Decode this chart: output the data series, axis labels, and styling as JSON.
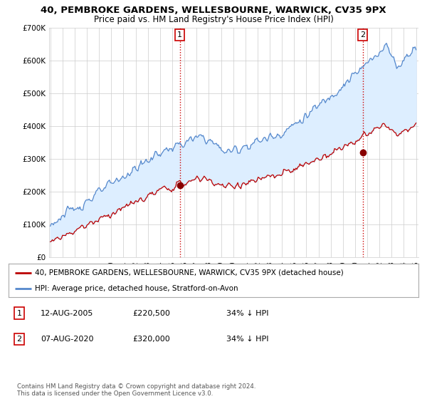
{
  "title": "40, PEMBROKE GARDENS, WELLESBOURNE, WARWICK, CV35 9PX",
  "subtitle": "Price paid vs. HM Land Registry's House Price Index (HPI)",
  "legend_property": "40, PEMBROKE GARDENS, WELLESBOURNE, WARWICK, CV35 9PX (detached house)",
  "legend_hpi": "HPI: Average price, detached house, Stratford-on-Avon",
  "purchase1": {
    "num": "1",
    "date": "12-AUG-2005",
    "price": 220500,
    "price_str": "£220,500",
    "note": "34% ↓ HPI",
    "year": 2005.622
  },
  "purchase2": {
    "num": "2",
    "date": "07-AUG-2020",
    "price": 320000,
    "price_str": "£320,000",
    "note": "34% ↓ HPI",
    "year": 2020.622
  },
  "footer": "Contains HM Land Registry data © Crown copyright and database right 2024.\nThis data is licensed under the Open Government Licence v3.0.",
  "ylim_max": 700000,
  "yticks": [
    0,
    100000,
    200000,
    300000,
    400000,
    500000,
    600000,
    700000
  ],
  "year_start": 1995,
  "year_end": 2025,
  "property_color": "#bb0000",
  "hpi_color": "#5588cc",
  "hpi_fill_color": "#ddeeff",
  "vline_color": "#cc0000",
  "dot_color": "#880000",
  "bg_color": "#ffffff",
  "grid_color": "#cccccc",
  "title_fontsize": 9.5,
  "subtitle_fontsize": 8.5
}
